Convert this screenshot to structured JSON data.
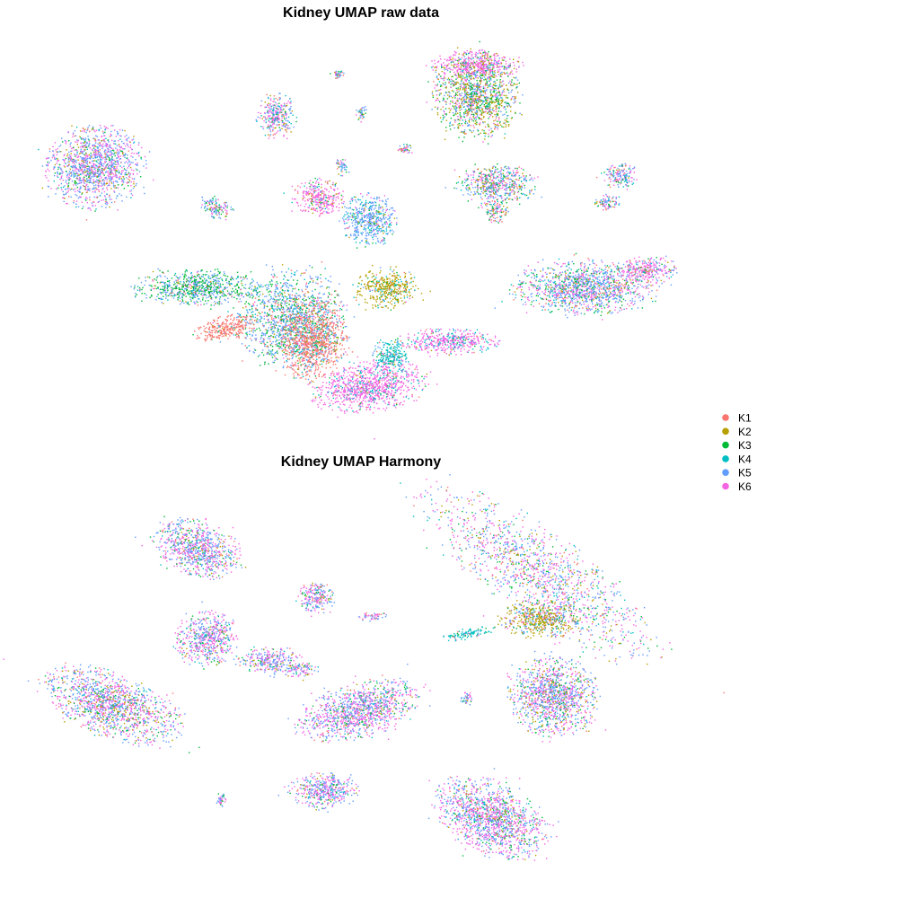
{
  "legend": {
    "entries": [
      {
        "label": "K1",
        "color": "#F8766D"
      },
      {
        "label": "K2",
        "color": "#B79F00"
      },
      {
        "label": "K3",
        "color": "#00BA38"
      },
      {
        "label": "K4",
        "color": "#00BFC4"
      },
      {
        "label": "K5",
        "color": "#619CFF"
      },
      {
        "label": "K6",
        "color": "#F564E3"
      }
    ]
  },
  "chart_data": [
    {
      "type": "scatter",
      "title": "Kidney UMAP raw data",
      "xlabel": "",
      "ylabel": "",
      "axes_visible": false,
      "grid": false,
      "legend_position": "right",
      "series": [
        {
          "name": "K1",
          "color": "#F8766D"
        },
        {
          "name": "K2",
          "color": "#B79F00"
        },
        {
          "name": "K3",
          "color": "#00BA38"
        },
        {
          "name": "K4",
          "color": "#00BFC4"
        },
        {
          "name": "K5",
          "color": "#619CFF"
        },
        {
          "name": "K6",
          "color": "#F564E3"
        }
      ],
      "clusters": [
        {
          "cx": 105,
          "cy": 185,
          "rx": 55,
          "ry": 45,
          "rot": -10,
          "mix": [
            0.05,
            0.08,
            0.08,
            0.04,
            0.4,
            0.35
          ]
        },
        {
          "cx": 530,
          "cy": 105,
          "rx": 48,
          "ry": 48,
          "rot": 0,
          "mix": [
            0.05,
            0.3,
            0.25,
            0.05,
            0.2,
            0.15
          ]
        },
        {
          "cx": 530,
          "cy": 72,
          "rx": 50,
          "ry": 16,
          "rot": 0,
          "mix": [
            0.02,
            0.1,
            0.05,
            0.03,
            0.1,
            0.7
          ]
        },
        {
          "cx": 220,
          "cy": 320,
          "rx": 70,
          "ry": 20,
          "rot": 0,
          "mix": [
            0.05,
            0.05,
            0.45,
            0.05,
            0.35,
            0.05
          ]
        },
        {
          "cx": 325,
          "cy": 355,
          "rx": 60,
          "ry": 55,
          "rot": 0,
          "mix": [
            0.15,
            0.05,
            0.25,
            0.1,
            0.4,
            0.05
          ]
        },
        {
          "cx": 250,
          "cy": 365,
          "rx": 35,
          "ry": 14,
          "rot": -10,
          "mix": [
            0.9,
            0.02,
            0.02,
            0.02,
            0.02,
            0.02
          ]
        },
        {
          "cx": 350,
          "cy": 380,
          "rx": 35,
          "ry": 45,
          "rot": 20,
          "mix": [
            0.7,
            0.05,
            0.05,
            0.05,
            0.1,
            0.05
          ]
        },
        {
          "cx": 430,
          "cy": 320,
          "rx": 35,
          "ry": 22,
          "rot": 0,
          "mix": [
            0.05,
            0.7,
            0.05,
            0.15,
            0.03,
            0.02
          ]
        },
        {
          "cx": 410,
          "cy": 245,
          "rx": 30,
          "ry": 30,
          "rot": 0,
          "mix": [
            0.03,
            0.05,
            0.05,
            0.2,
            0.6,
            0.07
          ]
        },
        {
          "cx": 355,
          "cy": 220,
          "rx": 30,
          "ry": 20,
          "rot": 0,
          "mix": [
            0.1,
            0.05,
            0.03,
            0.05,
            0.07,
            0.7
          ]
        },
        {
          "cx": 410,
          "cy": 430,
          "rx": 65,
          "ry": 28,
          "rot": -8,
          "mix": [
            0.02,
            0.02,
            0.02,
            0.14,
            0.05,
            0.75
          ]
        },
        {
          "cx": 500,
          "cy": 380,
          "rx": 55,
          "ry": 15,
          "rot": 0,
          "mix": [
            0.02,
            0.02,
            0.02,
            0.2,
            0.09,
            0.65
          ]
        },
        {
          "cx": 435,
          "cy": 395,
          "rx": 20,
          "ry": 20,
          "rot": 0,
          "mix": [
            0.05,
            0.05,
            0.05,
            0.7,
            0.1,
            0.05
          ]
        },
        {
          "cx": 650,
          "cy": 320,
          "rx": 80,
          "ry": 30,
          "rot": 0,
          "mix": [
            0.1,
            0.05,
            0.15,
            0.1,
            0.35,
            0.25
          ]
        },
        {
          "cx": 720,
          "cy": 300,
          "rx": 35,
          "ry": 15,
          "rot": 0,
          "mix": [
            0.05,
            0.05,
            0.05,
            0.05,
            0.2,
            0.6
          ]
        },
        {
          "cx": 553,
          "cy": 205,
          "rx": 45,
          "ry": 22,
          "rot": 0,
          "mix": [
            0.1,
            0.1,
            0.15,
            0.1,
            0.3,
            0.25
          ]
        },
        {
          "cx": 550,
          "cy": 235,
          "rx": 15,
          "ry": 12,
          "rot": 0,
          "mix": [
            0.15,
            0.15,
            0.15,
            0.15,
            0.2,
            0.2
          ]
        },
        {
          "cx": 690,
          "cy": 195,
          "rx": 20,
          "ry": 15,
          "rot": 0,
          "mix": [
            0.1,
            0.05,
            0.1,
            0.1,
            0.35,
            0.3
          ]
        },
        {
          "cx": 675,
          "cy": 225,
          "rx": 15,
          "ry": 10,
          "rot": 0,
          "mix": [
            0.1,
            0.05,
            0.1,
            0.1,
            0.35,
            0.3
          ]
        },
        {
          "cx": 307,
          "cy": 128,
          "rx": 22,
          "ry": 25,
          "rot": 0,
          "mix": [
            0.1,
            0.1,
            0.1,
            0.1,
            0.25,
            0.35
          ]
        },
        {
          "cx": 375,
          "cy": 82,
          "rx": 8,
          "ry": 5,
          "rot": 0,
          "mix": [
            0.1,
            0.1,
            0.1,
            0.1,
            0.3,
            0.3
          ]
        },
        {
          "cx": 402,
          "cy": 125,
          "rx": 6,
          "ry": 10,
          "rot": 0,
          "mix": [
            0.1,
            0.1,
            0.1,
            0.1,
            0.3,
            0.3
          ]
        },
        {
          "cx": 450,
          "cy": 165,
          "rx": 8,
          "ry": 6,
          "rot": 0,
          "mix": [
            0.1,
            0.1,
            0.1,
            0.1,
            0.3,
            0.3
          ]
        },
        {
          "cx": 380,
          "cy": 185,
          "rx": 8,
          "ry": 10,
          "rot": 0,
          "mix": [
            0.1,
            0.1,
            0.1,
            0.1,
            0.3,
            0.3
          ]
        },
        {
          "cx": 240,
          "cy": 230,
          "rx": 20,
          "ry": 12,
          "rot": 20,
          "mix": [
            0.1,
            0.1,
            0.15,
            0.1,
            0.3,
            0.25
          ]
        }
      ]
    },
    {
      "type": "scatter",
      "title": "Kidney UMAP Harmony",
      "xlabel": "",
      "ylabel": "",
      "axes_visible": false,
      "grid": false,
      "legend_position": "right",
      "series": [
        {
          "name": "K1",
          "color": "#F8766D"
        },
        {
          "name": "K2",
          "color": "#B79F00"
        },
        {
          "name": "K3",
          "color": "#00BA38"
        },
        {
          "name": "K4",
          "color": "#00BFC4"
        },
        {
          "name": "K5",
          "color": "#619CFF"
        },
        {
          "name": "K6",
          "color": "#F564E3"
        }
      ],
      "clusters": [
        {
          "cx": 600,
          "cy": 640,
          "rx": 160,
          "ry": 48,
          "rot": 35,
          "mix": [
            0.06,
            0.1,
            0.1,
            0.08,
            0.3,
            0.36
          ]
        },
        {
          "cx": 600,
          "cy": 690,
          "rx": 45,
          "ry": 20,
          "rot": 0,
          "mix": [
            0.08,
            0.55,
            0.08,
            0.06,
            0.13,
            0.1
          ]
        },
        {
          "cx": 615,
          "cy": 775,
          "rx": 50,
          "ry": 45,
          "rot": 0,
          "mix": [
            0.05,
            0.1,
            0.1,
            0.05,
            0.35,
            0.35
          ]
        },
        {
          "cx": 520,
          "cy": 705,
          "rx": 30,
          "ry": 6,
          "rot": -10,
          "mix": [
            0.03,
            0.03,
            0.05,
            0.8,
            0.05,
            0.04
          ]
        },
        {
          "cx": 125,
          "cy": 785,
          "rx": 80,
          "ry": 35,
          "rot": 20,
          "mix": [
            0.05,
            0.1,
            0.1,
            0.05,
            0.35,
            0.35
          ]
        },
        {
          "cx": 220,
          "cy": 610,
          "rx": 50,
          "ry": 30,
          "rot": 20,
          "mix": [
            0.05,
            0.05,
            0.1,
            0.05,
            0.35,
            0.4
          ]
        },
        {
          "cx": 400,
          "cy": 790,
          "rx": 70,
          "ry": 30,
          "rot": -15,
          "mix": [
            0.05,
            0.05,
            0.1,
            0.05,
            0.3,
            0.45
          ]
        },
        {
          "cx": 545,
          "cy": 910,
          "rx": 65,
          "ry": 40,
          "rot": 25,
          "mix": [
            0.05,
            0.05,
            0.1,
            0.05,
            0.3,
            0.45
          ]
        },
        {
          "cx": 230,
          "cy": 710,
          "rx": 35,
          "ry": 30,
          "rot": 0,
          "mix": [
            0.05,
            0.05,
            0.1,
            0.05,
            0.35,
            0.4
          ]
        },
        {
          "cx": 300,
          "cy": 735,
          "rx": 35,
          "ry": 15,
          "rot": 0,
          "mix": [
            0.05,
            0.05,
            0.1,
            0.05,
            0.35,
            0.4
          ]
        },
        {
          "cx": 350,
          "cy": 665,
          "rx": 22,
          "ry": 18,
          "rot": 0,
          "mix": [
            0.05,
            0.05,
            0.1,
            0.05,
            0.35,
            0.4
          ]
        },
        {
          "cx": 415,
          "cy": 686,
          "rx": 18,
          "ry": 5,
          "rot": 0,
          "mix": [
            0.05,
            0.05,
            0.1,
            0.05,
            0.35,
            0.4
          ]
        },
        {
          "cx": 360,
          "cy": 880,
          "rx": 40,
          "ry": 20,
          "rot": 0,
          "mix": [
            0.05,
            0.05,
            0.1,
            0.05,
            0.35,
            0.4
          ]
        },
        {
          "cx": 335,
          "cy": 745,
          "rx": 20,
          "ry": 8,
          "rot": -10,
          "mix": [
            0.05,
            0.05,
            0.1,
            0.05,
            0.35,
            0.4
          ]
        },
        {
          "cx": 520,
          "cy": 778,
          "rx": 8,
          "ry": 8,
          "rot": 0,
          "mix": [
            0.05,
            0.05,
            0.1,
            0.05,
            0.35,
            0.4
          ]
        },
        {
          "cx": 245,
          "cy": 890,
          "rx": 6,
          "ry": 8,
          "rot": 0,
          "mix": [
            0.05,
            0.05,
            0.1,
            0.05,
            0.35,
            0.4
          ]
        }
      ]
    }
  ]
}
